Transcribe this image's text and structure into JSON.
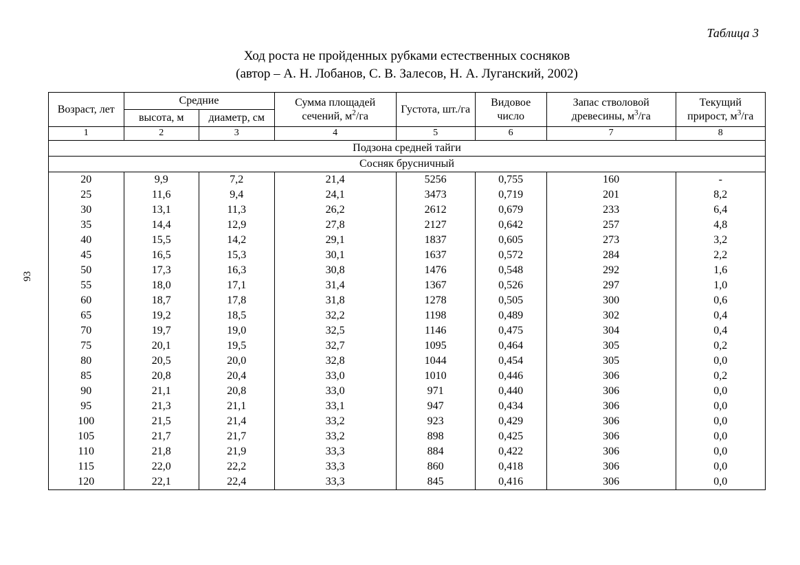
{
  "page_number": "93",
  "table_label": "Таблица 3",
  "title_line1": "Ход роста не пройденных рубками естественных сосняков",
  "title_line2": "(автор – А. Н. Лобанов, С. В. Залесов, Н. А. Луганский, 2002)",
  "columns": {
    "widths_pct": [
      10.5,
      10.5,
      10.5,
      17,
      11,
      10,
      18,
      12.5
    ],
    "age": "Возраст, лет",
    "avg_group": "Средние",
    "height": "высота, м",
    "diameter": "диаметр, см",
    "area_sum_pre": "Сумма площадей сечений, м",
    "area_sum_sup": "2",
    "area_sum_post": "/га",
    "density": "Густота, шт./га",
    "form": "Видовое число",
    "stock_pre": "Запас стволовой древесины, м",
    "stock_sup": "3",
    "stock_post": "/га",
    "increment_pre": "Текущий прирост, м",
    "increment_sup": "3",
    "increment_post": "/га",
    "nums": [
      "1",
      "2",
      "3",
      "4",
      "5",
      "6",
      "7",
      "8"
    ]
  },
  "section1": "Подзона средней тайги",
  "section2": "Сосняк брусничный",
  "rows": [
    [
      "20",
      "9,9",
      "7,2",
      "21,4",
      "5256",
      "0,755",
      "160",
      "-"
    ],
    [
      "25",
      "11,6",
      "9,4",
      "24,1",
      "3473",
      "0,719",
      "201",
      "8,2"
    ],
    [
      "30",
      "13,1",
      "11,3",
      "26,2",
      "2612",
      "0,679",
      "233",
      "6,4"
    ],
    [
      "35",
      "14,4",
      "12,9",
      "27,8",
      "2127",
      "0,642",
      "257",
      "4,8"
    ],
    [
      "40",
      "15,5",
      "14,2",
      "29,1",
      "1837",
      "0,605",
      "273",
      "3,2"
    ],
    [
      "45",
      "16,5",
      "15,3",
      "30,1",
      "1637",
      "0,572",
      "284",
      "2,2"
    ],
    [
      "50",
      "17,3",
      "16,3",
      "30,8",
      "1476",
      "0,548",
      "292",
      "1,6"
    ],
    [
      "55",
      "18,0",
      "17,1",
      "31,4",
      "1367",
      "0,526",
      "297",
      "1,0"
    ],
    [
      "60",
      "18,7",
      "17,8",
      "31,8",
      "1278",
      "0,505",
      "300",
      "0,6"
    ],
    [
      "65",
      "19,2",
      "18,5",
      "32,2",
      "1198",
      "0,489",
      "302",
      "0,4"
    ],
    [
      "70",
      "19,7",
      "19,0",
      "32,5",
      "1146",
      "0,475",
      "304",
      "0,4"
    ],
    [
      "75",
      "20,1",
      "19,5",
      "32,7",
      "1095",
      "0,464",
      "305",
      "0,2"
    ],
    [
      "80",
      "20,5",
      "20,0",
      "32,8",
      "1044",
      "0,454",
      "305",
      "0,0"
    ],
    [
      "85",
      "20,8",
      "20,4",
      "33,0",
      "1010",
      "0,446",
      "306",
      "0,2"
    ],
    [
      "90",
      "21,1",
      "20,8",
      "33,0",
      "971",
      "0,440",
      "306",
      "0,0"
    ],
    [
      "95",
      "21,3",
      "21,1",
      "33,1",
      "947",
      "0,434",
      "306",
      "0,0"
    ],
    [
      "100",
      "21,5",
      "21,4",
      "33,2",
      "923",
      "0,429",
      "306",
      "0,0"
    ],
    [
      "105",
      "21,7",
      "21,7",
      "33,2",
      "898",
      "0,425",
      "306",
      "0,0"
    ],
    [
      "110",
      "21,8",
      "21,9",
      "33,3",
      "884",
      "0,422",
      "306",
      "0,0"
    ],
    [
      "115",
      "22,0",
      "22,2",
      "33,3",
      "860",
      "0,418",
      "306",
      "0,0"
    ],
    [
      "120",
      "22,1",
      "22,4",
      "33,3",
      "845",
      "0,416",
      "306",
      "0,0"
    ]
  ]
}
